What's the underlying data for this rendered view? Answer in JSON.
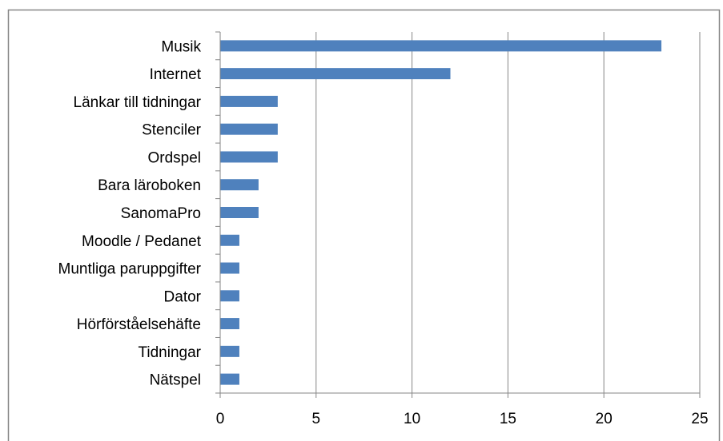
{
  "chart_data": {
    "type": "bar",
    "orientation": "horizontal",
    "title": "",
    "xlabel": "",
    "ylabel": "",
    "categories": [
      "Musik",
      "Internet",
      "Länkar till tidningar",
      "Stenciler",
      "Ordspel",
      "Bara läroboken",
      "SanomaPro",
      "Moodle / Pedanet",
      "Muntliga paruppgifter",
      "Dator",
      "Hörförståelsehäfte",
      "Tidningar",
      "Nätspel"
    ],
    "values": [
      23,
      12,
      3,
      3,
      3,
      2,
      2,
      1,
      1,
      1,
      1,
      1,
      1
    ],
    "xlim": [
      0,
      25
    ],
    "xticks": [
      0,
      5,
      10,
      15,
      20,
      25
    ],
    "grid": "vertical",
    "legend": "none",
    "colors": {
      "bar": "#4f81bd",
      "grid": "#868686",
      "axis": "#868686",
      "border": "#868686"
    }
  }
}
